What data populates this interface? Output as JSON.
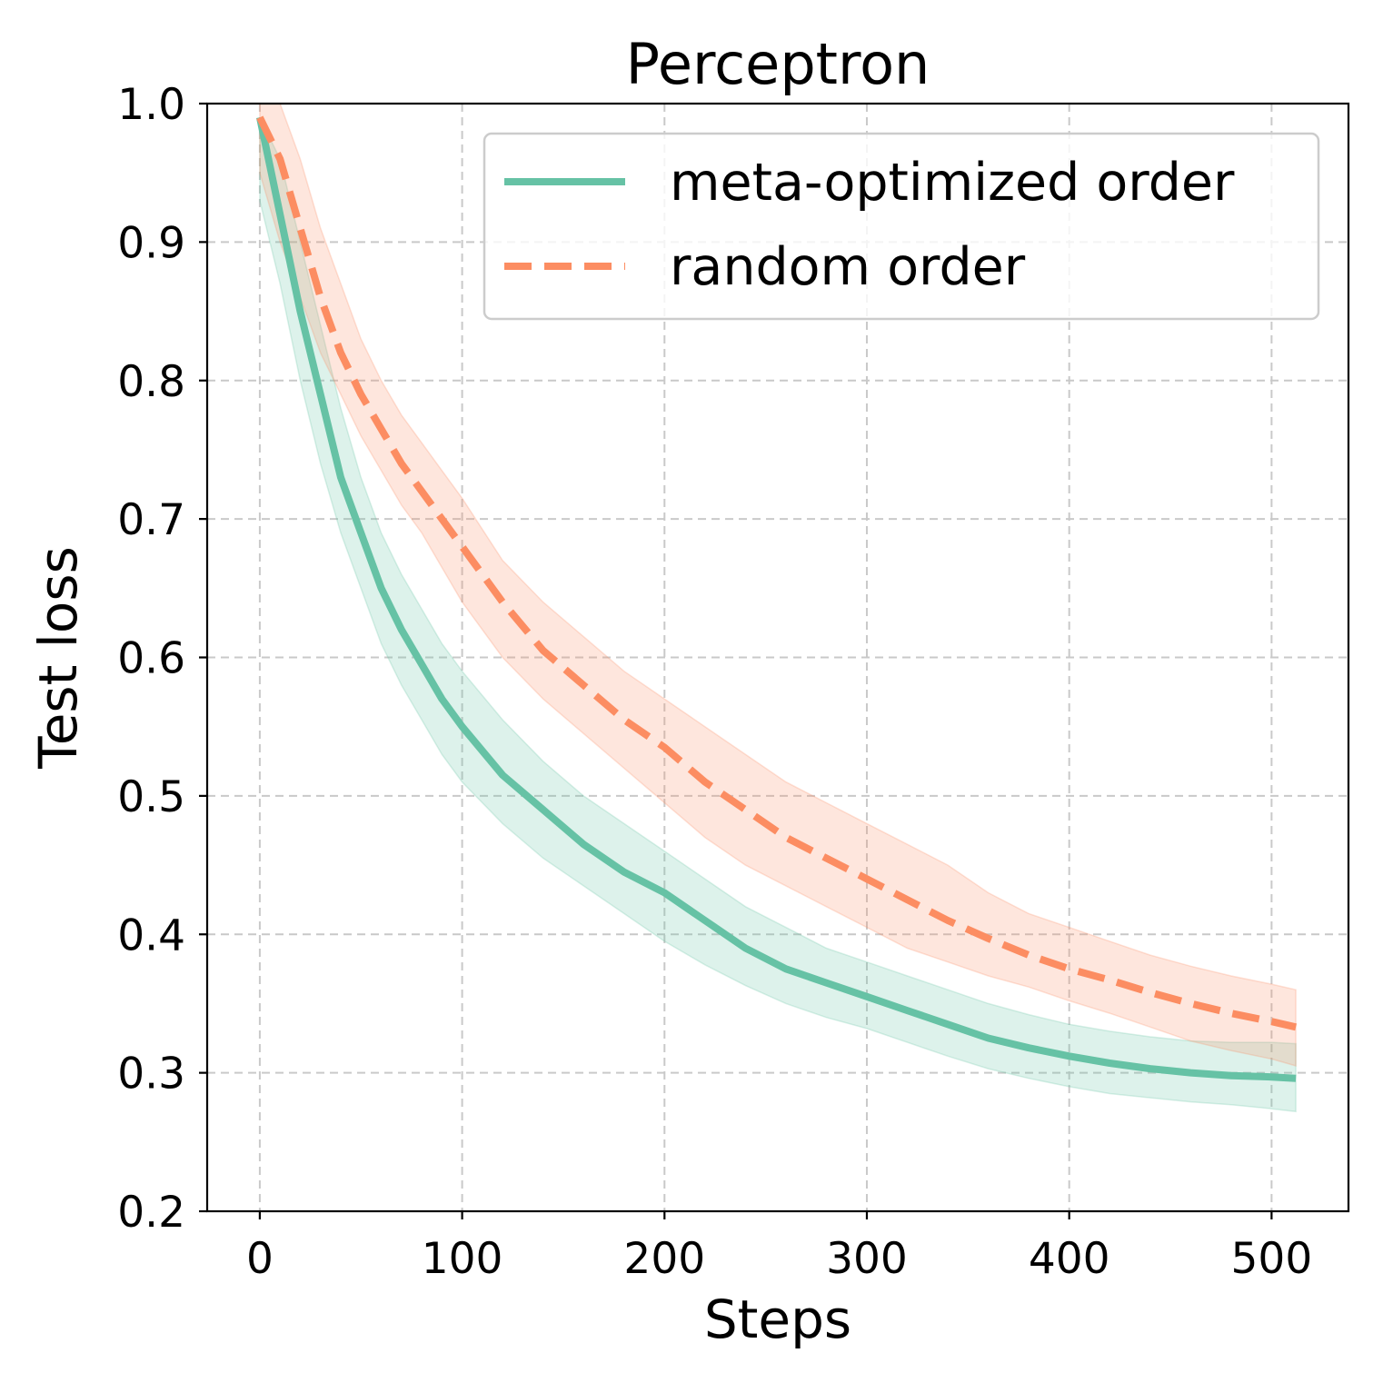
{
  "chart_data": {
    "type": "line",
    "title": "Perceptron",
    "xlabel": "Steps",
    "ylabel": "Test loss",
    "xlim": [
      -26,
      538
    ],
    "ylim": [
      0.2,
      1.0
    ],
    "xticks": [
      0,
      100,
      200,
      300,
      400,
      500
    ],
    "xtick_labels": [
      "0",
      "100",
      "200",
      "300",
      "400",
      "500"
    ],
    "yticks": [
      0.2,
      0.3,
      0.4,
      0.5,
      0.6,
      0.7,
      0.8,
      0.9,
      1.0
    ],
    "ytick_labels": [
      "0.2",
      "0.3",
      "0.4",
      "0.5",
      "0.6",
      "0.7",
      "0.8",
      "0.9",
      "1.0"
    ],
    "grid": true,
    "legend_position": "top-right",
    "series": [
      {
        "name": "meta-optimized order",
        "color": "#66c2a5",
        "line_style": "solid",
        "x": [
          0,
          10,
          20,
          30,
          40,
          50,
          60,
          70,
          80,
          90,
          100,
          120,
          140,
          160,
          180,
          200,
          220,
          240,
          260,
          280,
          300,
          320,
          340,
          360,
          380,
          400,
          420,
          440,
          460,
          480,
          500,
          512
        ],
        "y": [
          0.99,
          0.92,
          0.85,
          0.79,
          0.73,
          0.69,
          0.65,
          0.62,
          0.595,
          0.57,
          0.55,
          0.515,
          0.49,
          0.465,
          0.445,
          0.43,
          0.41,
          0.39,
          0.375,
          0.365,
          0.355,
          0.345,
          0.335,
          0.325,
          0.318,
          0.312,
          0.307,
          0.303,
          0.3,
          0.298,
          0.297,
          0.296
        ],
        "lower": [
          0.93,
          0.87,
          0.8,
          0.74,
          0.69,
          0.65,
          0.61,
          0.58,
          0.555,
          0.53,
          0.51,
          0.48,
          0.455,
          0.435,
          0.415,
          0.395,
          0.378,
          0.363,
          0.35,
          0.34,
          0.332,
          0.322,
          0.312,
          0.303,
          0.296,
          0.29,
          0.285,
          0.282,
          0.279,
          0.277,
          0.274,
          0.272
        ],
        "upper": [
          0.99,
          0.96,
          0.9,
          0.84,
          0.78,
          0.73,
          0.69,
          0.66,
          0.635,
          0.61,
          0.59,
          0.555,
          0.525,
          0.5,
          0.48,
          0.46,
          0.44,
          0.42,
          0.405,
          0.39,
          0.38,
          0.37,
          0.36,
          0.35,
          0.342,
          0.335,
          0.33,
          0.326,
          0.323,
          0.322,
          0.322,
          0.321
        ]
      },
      {
        "name": "random order",
        "color": "#fc8d62",
        "line_style": "dashed",
        "x": [
          0,
          10,
          20,
          30,
          40,
          50,
          60,
          70,
          80,
          90,
          100,
          120,
          140,
          160,
          180,
          200,
          220,
          240,
          260,
          280,
          300,
          320,
          340,
          360,
          380,
          400,
          420,
          440,
          460,
          480,
          500,
          512
        ],
        "y": [
          0.99,
          0.96,
          0.91,
          0.86,
          0.82,
          0.79,
          0.765,
          0.74,
          0.72,
          0.7,
          0.68,
          0.64,
          0.605,
          0.58,
          0.555,
          0.535,
          0.51,
          0.49,
          0.47,
          0.455,
          0.44,
          0.425,
          0.41,
          0.397,
          0.385,
          0.375,
          0.367,
          0.358,
          0.35,
          0.343,
          0.337,
          0.333
        ],
        "lower": [
          0.95,
          0.9,
          0.86,
          0.82,
          0.79,
          0.76,
          0.735,
          0.71,
          0.69,
          0.665,
          0.64,
          0.6,
          0.57,
          0.545,
          0.52,
          0.495,
          0.47,
          0.45,
          0.435,
          0.42,
          0.405,
          0.39,
          0.38,
          0.37,
          0.362,
          0.352,
          0.343,
          0.333,
          0.323,
          0.316,
          0.31,
          0.305
        ],
        "upper": [
          1.0,
          1.0,
          0.96,
          0.91,
          0.87,
          0.83,
          0.8,
          0.775,
          0.755,
          0.735,
          0.715,
          0.67,
          0.64,
          0.615,
          0.59,
          0.57,
          0.55,
          0.53,
          0.51,
          0.495,
          0.48,
          0.465,
          0.45,
          0.43,
          0.415,
          0.405,
          0.395,
          0.385,
          0.377,
          0.37,
          0.364,
          0.36
        ]
      }
    ]
  }
}
